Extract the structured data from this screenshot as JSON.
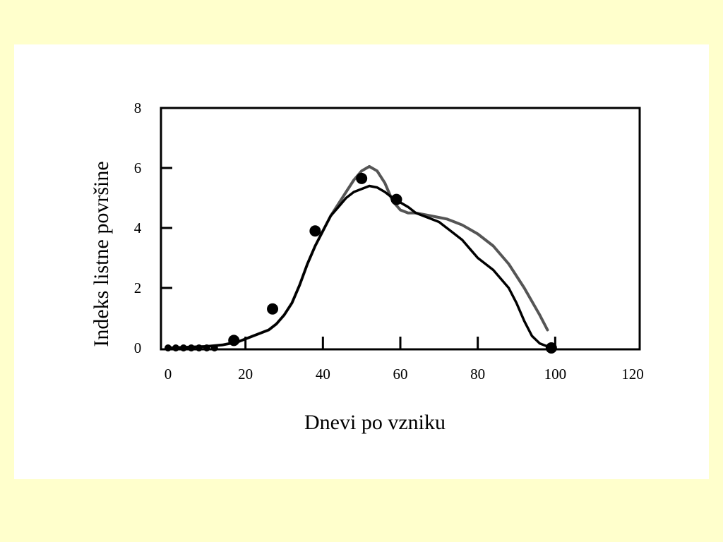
{
  "chart_data": {
    "type": "line",
    "title": "",
    "xlabel": "Dnevi po vzniku",
    "ylabel": "Indeks listne površine",
    "xlim": [
      0,
      120
    ],
    "ylim": [
      0,
      8
    ],
    "xticks": [
      0,
      20,
      40,
      60,
      80,
      100,
      120
    ],
    "yticks": [
      0,
      2,
      4,
      6,
      8
    ],
    "grid": false,
    "legend": "none",
    "series": [
      {
        "kind": "line",
        "color": "#555555",
        "x": [
          0,
          10,
          14,
          18,
          22,
          26,
          28,
          30,
          32,
          34,
          36,
          38,
          40,
          42,
          44,
          46,
          48,
          50,
          52,
          54,
          56,
          58,
          60,
          62,
          64,
          66,
          68,
          70,
          72,
          74,
          76,
          78,
          80,
          84,
          88,
          92,
          96,
          98
        ],
        "y": [
          0.0,
          0.05,
          0.1,
          0.2,
          0.4,
          0.6,
          0.8,
          1.1,
          1.5,
          2.1,
          2.8,
          3.4,
          3.9,
          4.4,
          4.8,
          5.2,
          5.6,
          5.9,
          6.05,
          5.9,
          5.5,
          4.9,
          4.6,
          4.5,
          4.5,
          4.45,
          4.4,
          4.35,
          4.3,
          4.2,
          4.1,
          3.95,
          3.8,
          3.4,
          2.8,
          2.0,
          1.1,
          0.6
        ]
      },
      {
        "kind": "line",
        "color": "#000000",
        "x": [
          0,
          10,
          14,
          18,
          22,
          26,
          28,
          30,
          32,
          34,
          36,
          38,
          40,
          42,
          44,
          46,
          48,
          50,
          52,
          54,
          56,
          58,
          60,
          62,
          64,
          66,
          68,
          70,
          72,
          74,
          76,
          78,
          80,
          84,
          88,
          90,
          92,
          94,
          96,
          98,
          100
        ],
        "y": [
          0.0,
          0.05,
          0.1,
          0.2,
          0.4,
          0.6,
          0.8,
          1.1,
          1.5,
          2.1,
          2.8,
          3.4,
          3.9,
          4.4,
          4.7,
          5.0,
          5.2,
          5.3,
          5.4,
          5.35,
          5.2,
          5.0,
          4.85,
          4.7,
          4.5,
          4.4,
          4.3,
          4.2,
          4.0,
          3.8,
          3.6,
          3.3,
          3.0,
          2.6,
          2.0,
          1.5,
          0.9,
          0.4,
          0.15,
          0.05,
          0.0
        ]
      },
      {
        "kind": "scatter",
        "color": "#000000",
        "x": [
          0,
          2,
          4,
          6,
          8,
          10,
          12,
          17,
          27,
          38,
          50,
          59,
          99
        ],
        "y": [
          0,
          0,
          0,
          0,
          0,
          0,
          0,
          0.25,
          1.3,
          3.9,
          5.65,
          4.95,
          0.0
        ]
      }
    ]
  }
}
